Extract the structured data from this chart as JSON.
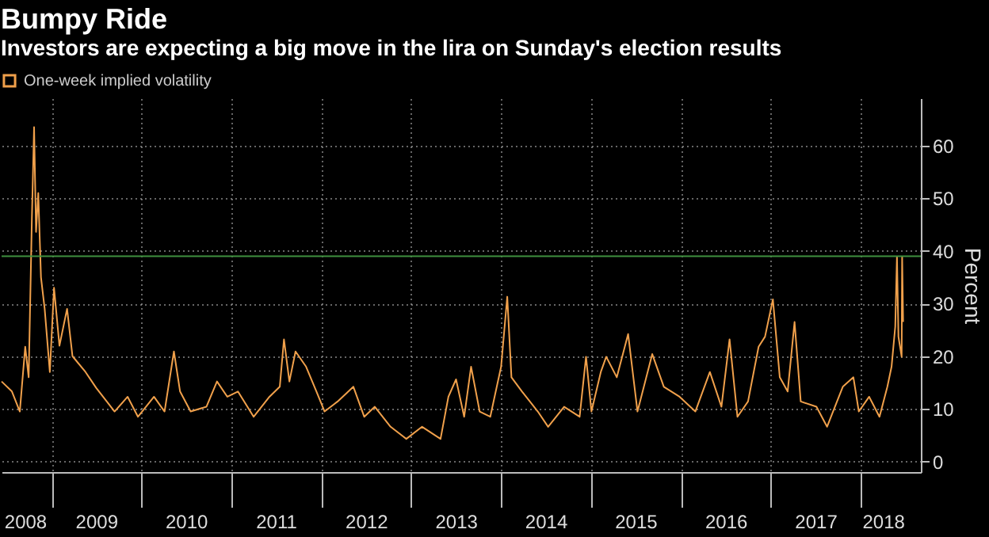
{
  "chart_data": {
    "type": "line",
    "title": "Bumpy Ride",
    "subtitle": "Investors are expecting a big move in the lira on Sunday's election results",
    "ylabel": "Percent",
    "x": [
      "2008-06-12",
      "2008-07-24",
      "2008-08-25",
      "2008-09-16",
      "2008-09-30",
      "2008-10-13",
      "2008-10-22",
      "2008-10-30",
      "2008-11-08",
      "2008-11-19",
      "2008-12-04",
      "2008-12-25",
      "2009-01-11",
      "2009-02-02",
      "2009-03-05",
      "2009-03-27",
      "2009-05-19",
      "2009-07-01",
      "2009-09-14",
      "2009-11-06",
      "2009-12-18",
      "2010-02-21",
      "2010-04-05",
      "2010-05-13",
      "2010-06-07",
      "2010-07-20",
      "2010-09-22",
      "2010-11-04",
      "2010-12-16",
      "2011-01-28",
      "2011-04-02",
      "2011-06-05",
      "2011-07-17",
      "2011-08-03",
      "2011-08-25",
      "2011-09-19",
      "2011-11-01",
      "2011-12-13",
      "2012-01-15",
      "2012-03-08",
      "2012-05-11",
      "2012-06-24",
      "2012-08-06",
      "2012-10-09",
      "2012-12-12",
      "2013-02-14",
      "2013-04-30",
      "2013-06-01",
      "2013-07-02",
      "2013-08-04",
      "2013-09-01",
      "2013-10-06",
      "2013-11-18",
      "2014-01-01",
      "2014-01-26",
      "2014-02-12",
      "2014-03-27",
      "2014-05-30",
      "2014-07-11",
      "2014-09-14",
      "2014-11-16",
      "2014-12-12",
      "2015-01-03",
      "2015-02-10",
      "2015-03-04",
      "2015-04-16",
      "2015-06-01",
      "2015-07-09",
      "2015-09-07",
      "2015-10-24",
      "2015-12-27",
      "2016-02-29",
      "2016-04-28",
      "2016-06-14",
      "2016-07-17",
      "2016-08-18",
      "2016-09-30",
      "2016-11-12",
      "2016-12-08",
      "2017-01-09",
      "2017-02-06",
      "2017-03-10",
      "2017-04-07",
      "2017-05-02",
      "2017-07-05",
      "2017-08-17",
      "2017-10-20",
      "2017-12-02",
      "2017-12-24",
      "2018-02-04",
      "2018-03-18",
      "2018-04-19",
      "2018-05-06",
      "2018-05-21",
      "2018-05-28",
      "2018-06-03",
      "2018-06-16",
      "2018-06-18",
      "2018-06-22"
    ],
    "series": [
      {
        "name": "One-week implied volatility",
        "color": "#f0a04b",
        "values": [
          15.2,
          13.3,
          9.5,
          21.8,
          16,
          46,
          63.5,
          43.6,
          51,
          35,
          29,
          17,
          33,
          22,
          29,
          20,
          17,
          14,
          9.5,
          12.3,
          8.5,
          12.3,
          9.5,
          20.9,
          13.3,
          9.5,
          10.4,
          15.2,
          12.3,
          13.3,
          8.5,
          12.3,
          14.2,
          23.2,
          15.2,
          20.9,
          18,
          13.3,
          9.5,
          11.4,
          14.2,
          8.5,
          10.4,
          6.6,
          4.3,
          6.6,
          4.3,
          12.3,
          15.6,
          8.5,
          18,
          9.5,
          8.5,
          18,
          31.3,
          16,
          13.3,
          9.5,
          6.6,
          10.4,
          8.5,
          19.9,
          9.5,
          17,
          19.9,
          16,
          24.2,
          9.5,
          20.4,
          14.2,
          12.3,
          9.5,
          17,
          10.4,
          23.2,
          8.5,
          11.4,
          21.8,
          23.7,
          30.8,
          16,
          13.3,
          26.5,
          11.4,
          10.4,
          6.6,
          14.2,
          16,
          9.5,
          12.3,
          8.5,
          14.2,
          18,
          25.6,
          38.9,
          23.7,
          19.9,
          38.9,
          26.5
        ]
      }
    ],
    "xlim": [
      "2008-06-12",
      "2018-09-02"
    ],
    "xticks": [
      {
        "value": "2008-09-15",
        "label": "2008"
      },
      {
        "value": "2009-01-01",
        "label": null
      },
      {
        "value": "2009-07-01",
        "label": "2009"
      },
      {
        "value": "2010-01-01",
        "label": null
      },
      {
        "value": "2010-07-01",
        "label": "2010"
      },
      {
        "value": "2011-01-01",
        "label": null
      },
      {
        "value": "2011-07-01",
        "label": "2011"
      },
      {
        "value": "2012-01-01",
        "label": null
      },
      {
        "value": "2012-07-01",
        "label": "2012"
      },
      {
        "value": "2013-01-01",
        "label": null
      },
      {
        "value": "2013-07-01",
        "label": "2013"
      },
      {
        "value": "2014-01-01",
        "label": null
      },
      {
        "value": "2014-07-01",
        "label": "2014"
      },
      {
        "value": "2015-01-01",
        "label": null
      },
      {
        "value": "2015-07-01",
        "label": "2015"
      },
      {
        "value": "2016-01-01",
        "label": null
      },
      {
        "value": "2016-07-01",
        "label": "2016"
      },
      {
        "value": "2017-01-01",
        "label": null
      },
      {
        "value": "2017-07-01",
        "label": "2017"
      },
      {
        "value": "2018-01-01",
        "label": null
      },
      {
        "value": "2018-04-01",
        "label": "2018"
      }
    ],
    "ylim": [
      -2,
      69
    ],
    "yticks": [
      0,
      10,
      20,
      30,
      40,
      50,
      60
    ],
    "ref_lines": [
      {
        "axis": "y",
        "value": 39,
        "color": "#3f8f3f"
      }
    ],
    "grid": true,
    "legend": "top left"
  }
}
